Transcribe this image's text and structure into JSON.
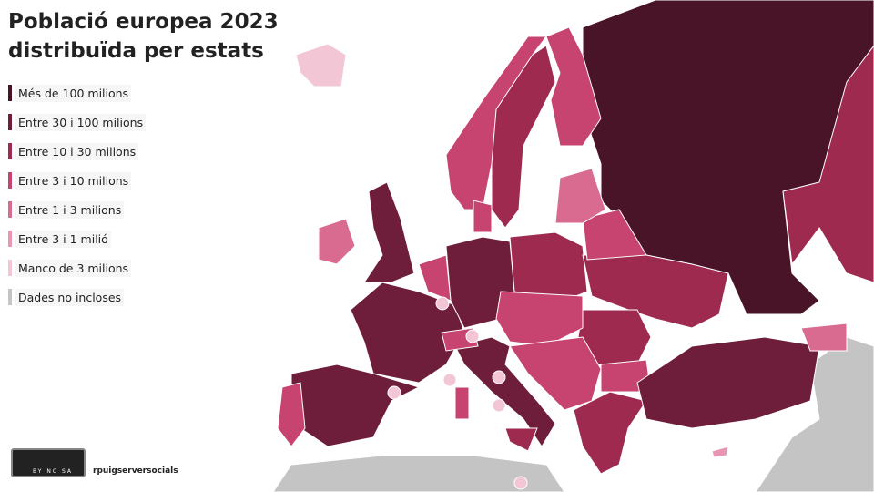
{
  "header": {
    "title_lines": [
      "Població europea 2023",
      "distribuïda per estats"
    ]
  },
  "legend": {
    "items": [
      {
        "label": "Més de 100 milions",
        "color": "#4a1428"
      },
      {
        "label": "Entre 30 i 100 milions",
        "color": "#6e1d3a"
      },
      {
        "label": "Entre 10 i 30 milions",
        "color": "#9e2a50"
      },
      {
        "label": "Entre 3 i 10 milions",
        "color": "#c74470"
      },
      {
        "label": "Entre 1 i 3 milions",
        "color": "#d96a90"
      },
      {
        "label": "Entre 3 i 1 milió",
        "color": "#e896b4"
      },
      {
        "label": "Manco de 3 milions",
        "color": "#f3c6d6"
      },
      {
        "label": "Dades no incloses",
        "color": "#c4c4c4"
      }
    ]
  },
  "credits": {
    "license": "BY NC SA",
    "author": "rpuigserversocials"
  }
}
